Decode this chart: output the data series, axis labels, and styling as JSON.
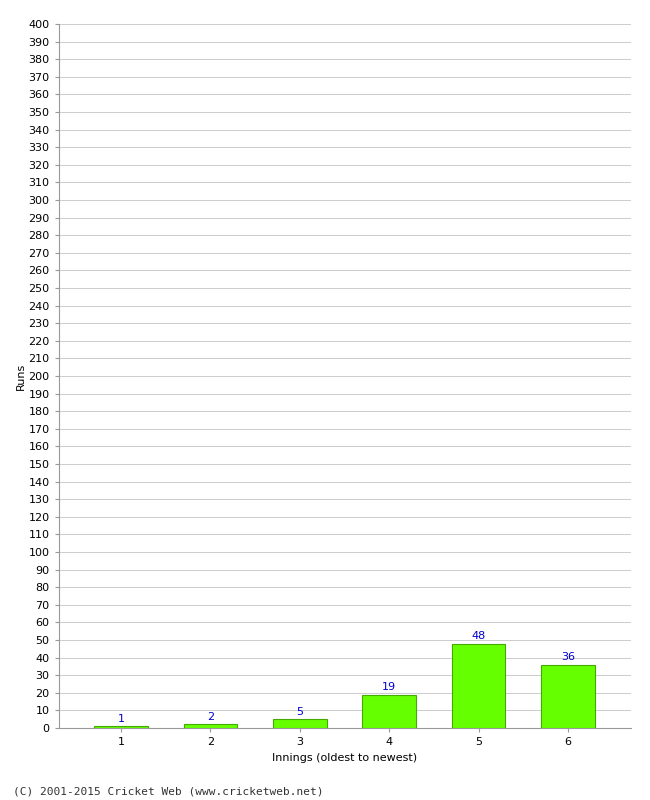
{
  "categories": [
    "1",
    "2",
    "3",
    "4",
    "5",
    "6"
  ],
  "values": [
    1,
    2,
    5,
    19,
    48,
    36
  ],
  "bar_color": "#66ff00",
  "bar_edge_color": "#44aa00",
  "xlabel": "Innings (oldest to newest)",
  "ylabel": "Runs",
  "ylim": [
    0,
    400
  ],
  "label_color": "#0000cc",
  "footer": "(C) 2001-2015 Cricket Web (www.cricketweb.net)",
  "background_color": "#ffffff",
  "grid_color": "#cccccc",
  "label_fontsize": 8,
  "axis_tick_fontsize": 8,
  "axis_label_fontsize": 8,
  "footer_fontsize": 8
}
